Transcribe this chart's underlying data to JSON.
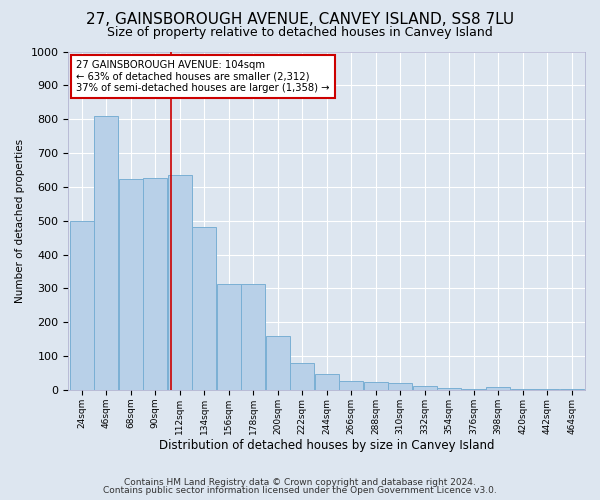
{
  "title": "27, GAINSBOROUGH AVENUE, CANVEY ISLAND, SS8 7LU",
  "subtitle": "Size of property relative to detached houses in Canvey Island",
  "xlabel": "Distribution of detached houses by size in Canvey Island",
  "ylabel": "Number of detached properties",
  "footnote1": "Contains HM Land Registry data © Crown copyright and database right 2024.",
  "footnote2": "Contains public sector information licensed under the Open Government Licence v3.0.",
  "bar_labels": [
    "24sqm",
    "46sqm",
    "68sqm",
    "90sqm",
    "112sqm",
    "134sqm",
    "156sqm",
    "178sqm",
    "200sqm",
    "222sqm",
    "244sqm",
    "266sqm",
    "288sqm",
    "310sqm",
    "332sqm",
    "354sqm",
    "376sqm",
    "398sqm",
    "420sqm",
    "442sqm",
    "464sqm"
  ],
  "bar_values": [
    500,
    810,
    622,
    625,
    635,
    480,
    312,
    312,
    160,
    80,
    47,
    25,
    22,
    20,
    11,
    5,
    2,
    10,
    2,
    2,
    2
  ],
  "bar_color": "#b8d0e8",
  "bar_edgecolor": "#7aafd4",
  "annotation_line_color": "#cc0000",
  "annotation_text": "27 GAINSBOROUGH AVENUE: 104sqm\n← 63% of detached houses are smaller (2,312)\n37% of semi-detached houses are larger (1,358) →",
  "annotation_box_facecolor": "#ffffff",
  "annotation_box_edgecolor": "#cc0000",
  "ylim_max": 1000,
  "background_color": "#dde6f0",
  "plot_background": "#dde6f0",
  "grid_color": "#ffffff",
  "title_fontsize": 11,
  "subtitle_fontsize": 9,
  "footnote_fontsize": 6.5,
  "bin_centers": [
    24,
    46,
    68,
    90,
    112,
    134,
    156,
    178,
    200,
    222,
    244,
    266,
    288,
    310,
    332,
    354,
    376,
    398,
    420,
    442,
    464
  ],
  "bin_width": 22,
  "property_sqm": 104
}
